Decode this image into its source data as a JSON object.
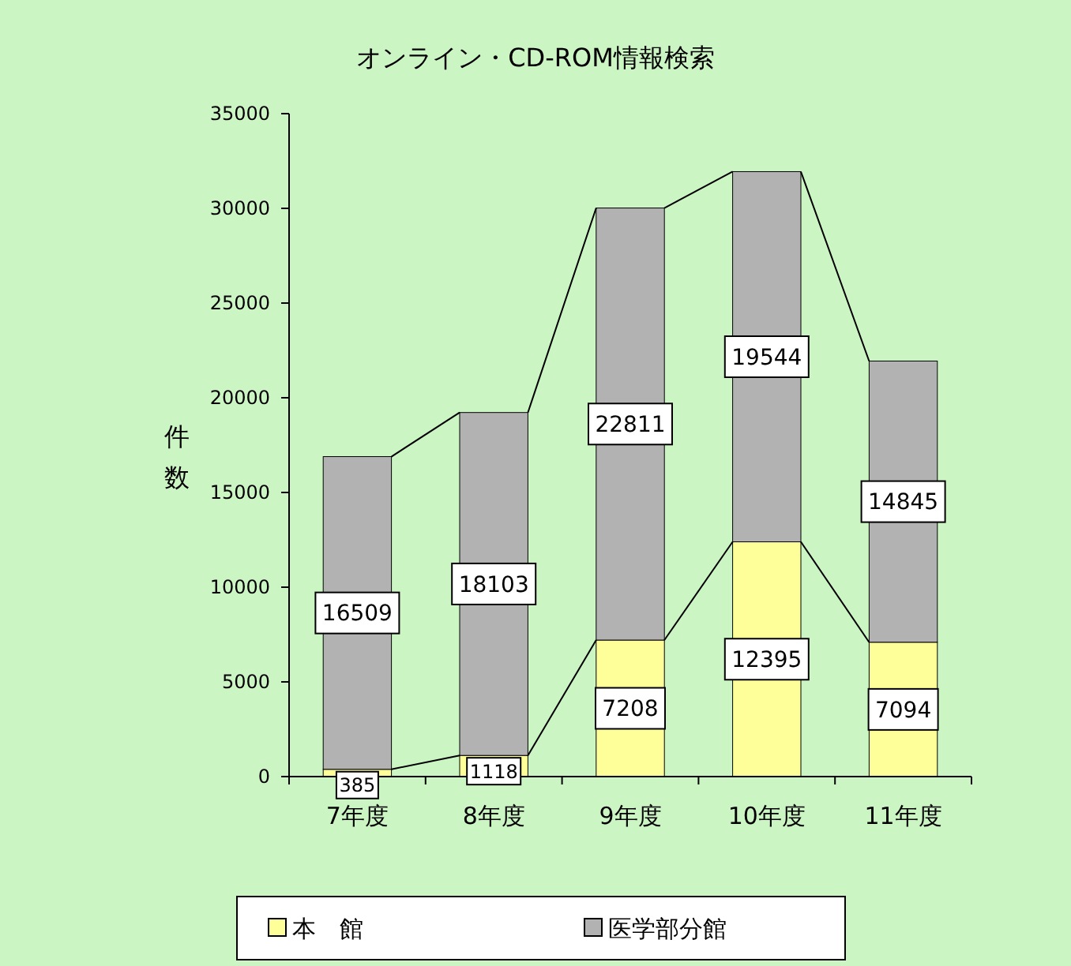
{
  "chart_data": {
    "type": "bar",
    "title": "オンライン・CD-ROM情報検索",
    "ylabel": "件数",
    "categories": [
      "7年度",
      "8年度",
      "9年度",
      "10年度",
      "11年度"
    ],
    "series": [
      {
        "name": "本　館",
        "color": "#ffff99",
        "values": [
          385,
          1118,
          7208,
          12395,
          7094
        ]
      },
      {
        "name": "医学部分館",
        "color": "#b2b2b2",
        "values": [
          16509,
          18103,
          22811,
          19544,
          14845
        ]
      }
    ],
    "stacked": true,
    "data_labels": true,
    "ylim": [
      0,
      35000
    ],
    "yticks": [
      0,
      5000,
      10000,
      15000,
      20000,
      25000,
      30000,
      35000
    ],
    "grid": false,
    "legend": "bottom"
  }
}
